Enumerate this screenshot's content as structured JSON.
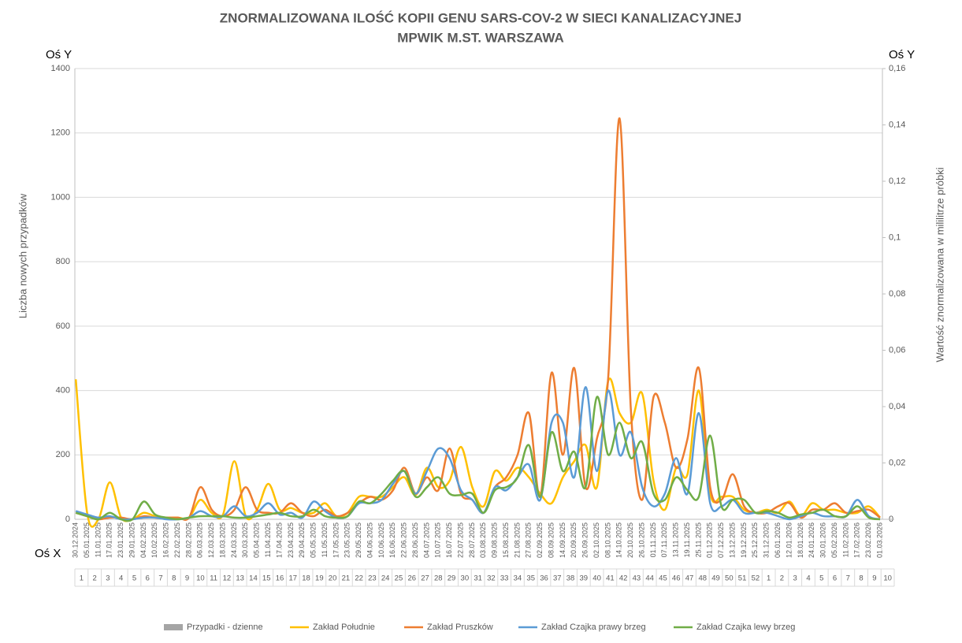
{
  "chart_data": {
    "type": "line",
    "title": [
      "ZNORMALIZOWANA ILOŚĆ KOPII GENU SARS-COV-2 W SIECI KANALIZACYJNEJ",
      "MPWIK M.ST. WARSZAWA"
    ],
    "y_axis_name": "Oś Y",
    "y2_axis_name": "Oś Y",
    "x_axis_name": "Oś X",
    "ylabel": "Liczba nowych przypadków",
    "y2label": "Wartość znormalizowana w mililitrze próbki",
    "x": [
      "30.12.2024",
      "05.01.2025",
      "11.01.2025",
      "17.01.2025",
      "23.01.2025",
      "29.01.2025",
      "04.02.2025",
      "10.02.2025",
      "16.02.2025",
      "22.02.2025",
      "28.02.2025",
      "06.03.2025",
      "12.03.2025",
      "18.03.2025",
      "24.03.2025",
      "30.03.2025",
      "05.04.2025",
      "11.04.2025",
      "17.04.2025",
      "23.04.2025",
      "29.04.2025",
      "05.05.2025",
      "11.05.2025",
      "17.05.2025",
      "23.05.2025",
      "29.05.2025",
      "04.06.2025",
      "10.06.2025",
      "16.06.2025",
      "22.06.2025",
      "28.06.2025",
      "04.07.2025",
      "10.07.2025",
      "16.07.2025",
      "22.07.2025",
      "28.07.2025",
      "03.08.2025",
      "09.08.2025",
      "15.08.2025",
      "21.08.2025",
      "27.08.2025",
      "02.09.2025",
      "08.09.2025",
      "14.09.2025",
      "20.09.2025",
      "26.09.2025",
      "02.10.2025",
      "08.10.2025",
      "14.10.2025",
      "20.10.2025",
      "26.10.2025",
      "01.11.2025",
      "07.11.2025",
      "13.11.2025",
      "19.11.2025",
      "25.11.2025",
      "01.12.2025",
      "07.12.2025",
      "13.12.2025",
      "19.12.2025",
      "25.12.2025",
      "31.12.2025",
      "06.01.2026",
      "12.01.2026",
      "18.01.2026",
      "24.01.2026",
      "30.01.2026",
      "05.02.2026",
      "11.02.2026",
      "17.02.2026",
      "23.02.2026",
      "01.03.2026"
    ],
    "weeks": [
      1,
      2,
      3,
      4,
      5,
      6,
      7,
      8,
      9,
      10,
      11,
      12,
      13,
      14,
      15,
      16,
      17,
      18,
      19,
      20,
      21,
      22,
      23,
      24,
      25,
      26,
      27,
      28,
      29,
      30,
      31,
      32,
      33,
      34,
      35,
      36,
      37,
      38,
      39,
      40,
      41,
      42,
      43,
      44,
      45,
      46,
      47,
      48,
      49,
      50,
      51,
      52,
      1,
      2,
      3,
      4,
      5,
      6,
      7,
      8,
      9,
      10
    ],
    "ylim": [
      0,
      1400
    ],
    "yticks": [
      0,
      200,
      400,
      600,
      800,
      1000,
      1200,
      1400
    ],
    "y2lim": [
      0,
      0.16
    ],
    "y2ticks": [
      0,
      {
        "value": 0.02,
        "label": "0,02"
      },
      {
        "value": 0.04,
        "label": "0,04"
      },
      {
        "value": 0.06,
        "label": "0,06"
      },
      {
        "value": 0.08,
        "label": "0,08"
      },
      {
        "value": 0.1,
        "label": "0,1"
      },
      {
        "value": 0.12,
        "label": "0,12"
      },
      {
        "value": 0.14,
        "label": "0,14"
      },
      {
        "value": 0.16,
        "label": "0,16"
      }
    ],
    "grid": true,
    "legend": "bottom",
    "series": [
      {
        "name": "Przypadki - dzienne",
        "color": "#a5a5a5",
        "type": "bar"
      },
      {
        "name": "Zakład Południe",
        "color": "#ffc000",
        "axis": "y2",
        "values": [
          0.0497,
          0.0023,
          0,
          0.0131,
          0.0006,
          0,
          0.0023,
          0.0011,
          0.0006,
          0.0006,
          0.0006,
          0.0069,
          0.0023,
          0.0017,
          0.0206,
          0.0011,
          0.0034,
          0.0126,
          0.0034,
          0.004,
          0.0023,
          0.0023,
          0.0057,
          0.0011,
          0.0023,
          0.008,
          0.008,
          0.008,
          0.0114,
          0.0149,
          0.0086,
          0.0183,
          0.0114,
          0.0137,
          0.0257,
          0.0114,
          0.0046,
          0.0171,
          0.0137,
          0.0183,
          0.0149,
          0.0091,
          0.0057,
          0.0149,
          0.0206,
          0.0263,
          0.0114,
          0.0491,
          0.0377,
          0.0343,
          0.0446,
          0.0137,
          0.0034,
          0.0183,
          0.016,
          0.0457,
          0.0091,
          0.008,
          0.008,
          0.0034,
          0.0023,
          0.0034,
          0.0023,
          0.0063,
          0.0011,
          0.0057,
          0.0034,
          0.0034,
          0.0023,
          0.0023,
          0.0046,
          0.0006
        ]
      },
      {
        "name": "Zakład Pruszków",
        "color": "#ed7d31",
        "axis": "y2",
        "values": [
          0.0023,
          0.0011,
          0,
          0.0006,
          0.0006,
          0,
          0.0011,
          0.0006,
          0.0006,
          0.0006,
          0.0006,
          0.0114,
          0.0034,
          0.0011,
          0.0034,
          0.0114,
          0.0034,
          0.0023,
          0.0023,
          0.0057,
          0.0023,
          0.0011,
          0.0034,
          0.0011,
          0.0023,
          0.0057,
          0.008,
          0.0069,
          0.0103,
          0.0183,
          0.0091,
          0.0149,
          0.0103,
          0.0251,
          0.0091,
          0.0069,
          0.0023,
          0.0114,
          0.0149,
          0.0229,
          0.0377,
          0.008,
          0.052,
          0.0229,
          0.0537,
          0.0114,
          0.0286,
          0.0503,
          0.1423,
          0.0389,
          0.0069,
          0.0434,
          0.0343,
          0.0183,
          0.0286,
          0.0537,
          0.0114,
          0.0069,
          0.016,
          0.0046,
          0.0023,
          0.0023,
          0.0046,
          0.0057,
          0.0006,
          0.0034,
          0.0034,
          0.0057,
          0.0023,
          0.0029,
          0.0034,
          0.0006
        ]
      },
      {
        "name": "Zakład Czajka prawy brzeg",
        "color": "#5b9bd5",
        "axis": "y2",
        "values": [
          0.0029,
          0.0017,
          0.0006,
          0.0011,
          0,
          0,
          0.0006,
          0.0006,
          0,
          0,
          0.0006,
          0.0029,
          0.0011,
          0.0011,
          0.0046,
          0.0011,
          0.0023,
          0.0057,
          0.0017,
          0.0023,
          0.0006,
          0.0063,
          0.0029,
          0.0006,
          0.0011,
          0.0057,
          0.0057,
          0.0069,
          0.0126,
          0.0171,
          0.0091,
          0.0171,
          0.0251,
          0.0217,
          0.0103,
          0.0069,
          0.0023,
          0.0114,
          0.0103,
          0.0149,
          0.0194,
          0.0069,
          0.0343,
          0.0343,
          0.0149,
          0.0469,
          0.0171,
          0.0457,
          0.0229,
          0.0309,
          0.0114,
          0.0046,
          0.0091,
          0.0217,
          0.0091,
          0.0377,
          0.0057,
          0.0046,
          0.0069,
          0.0023,
          0.0023,
          0.0023,
          0.0011,
          0,
          0.0011,
          0.0023,
          0.0011,
          0.0011,
          0.0011,
          0.0069,
          0.0011,
          0
        ]
      },
      {
        "name": "Zakład Czajka lewy brzeg",
        "color": "#70ad47",
        "axis": "y2",
        "values": [
          0.0023,
          0.0011,
          0,
          0.0023,
          0,
          0,
          0.0063,
          0.0017,
          0.0006,
          0,
          0.0006,
          0.0011,
          0.0011,
          0.0011,
          0.0006,
          0.0006,
          0.0011,
          0.0017,
          0.0023,
          0.0011,
          0.0011,
          0.0034,
          0.0011,
          0.0006,
          0.0011,
          0.0063,
          0.0057,
          0.0091,
          0.0137,
          0.0171,
          0.008,
          0.0114,
          0.0149,
          0.0091,
          0.0086,
          0.0091,
          0.0023,
          0.0103,
          0.0114,
          0.0149,
          0.0263,
          0.008,
          0.0309,
          0.0171,
          0.024,
          0.0114,
          0.0434,
          0.0229,
          0.0343,
          0.0217,
          0.0274,
          0.0091,
          0.0069,
          0.0149,
          0.0103,
          0.008,
          0.0297,
          0.0046,
          0.0069,
          0.0069,
          0.0023,
          0.0029,
          0.0023,
          0.0006,
          0.0017,
          0.0023,
          0.0034,
          0.0011,
          0.0011,
          0.0046,
          0.0006,
          0
        ]
      }
    ]
  }
}
